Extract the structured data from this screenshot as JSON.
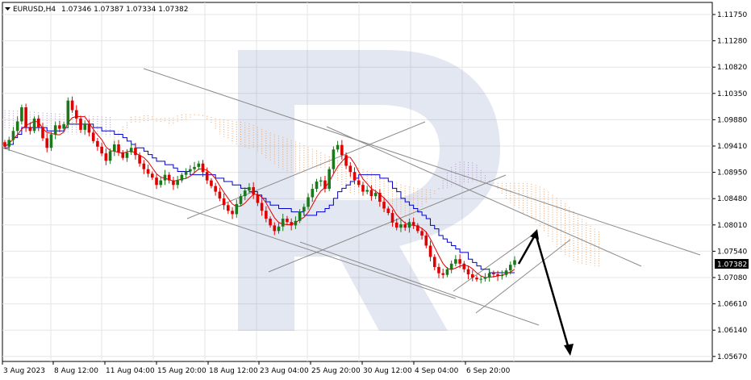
{
  "header": {
    "symbol": "EURUSD,H4",
    "ohlc": "1.07346 1.07387 1.07334 1.07382"
  },
  "colors": {
    "bull_candle": "#1a7a1a",
    "bear_candle": "#e00000",
    "kijun": "#0000cc",
    "tenkan": "#e00000",
    "cloud_bull": "#b090d0",
    "cloud_bear": "#f0a060",
    "trendline": "#888888",
    "arrow": "#000000",
    "grid": "#e6e6e6",
    "price_badge_bg": "#000000",
    "price_badge_fg": "#ffffff"
  },
  "chart_data": {
    "type": "candlestick",
    "y_ticks": [
      "1.11750",
      "1.11280",
      "1.10820",
      "1.10350",
      "1.09880",
      "1.09410",
      "1.08950",
      "1.08480",
      "1.08010",
      "1.07540",
      "1.07080",
      "1.06610",
      "1.06140",
      "1.05670"
    ],
    "x_ticks": [
      "3 Aug 2023",
      "8 Aug 12:00",
      "11 Aug 04:00",
      "15 Aug 20:00",
      "18 Aug 12:00",
      "23 Aug 04:00",
      "25 Aug 20:00",
      "30 Aug 12:00",
      "4 Sep 04:00",
      "6 Sep 20:00"
    ],
    "current_price": "1.07382",
    "ylim": [
      1.056,
      1.119
    ],
    "closes": [
      1.094,
      1.0952,
      1.0968,
      1.0985,
      1.101,
      1.0975,
      1.0968,
      1.099,
      1.0975,
      1.0955,
      1.0938,
      1.0962,
      1.0978,
      1.0972,
      1.098,
      1.1022,
      1.1005,
      1.099,
      1.097,
      1.098,
      1.0965,
      1.095,
      1.094,
      1.0928,
      1.0915,
      1.0932,
      1.0944,
      1.093,
      1.092,
      1.093,
      1.0938,
      1.0925,
      1.091,
      1.09,
      1.0892,
      1.0885,
      1.0872,
      1.088,
      1.089,
      1.088,
      1.0872,
      1.088,
      1.089,
      1.0896,
      1.09,
      1.0904,
      1.091,
      1.0895,
      1.088,
      1.087,
      1.086,
      1.0848,
      1.0836,
      1.0826,
      1.082,
      1.0838,
      1.0852,
      1.0862,
      1.0868,
      1.0855,
      1.084,
      1.0826,
      1.0812,
      1.08,
      1.079,
      1.0798,
      1.0812,
      1.0806,
      1.08,
      1.0808,
      1.0825,
      1.0833,
      1.085,
      1.0865,
      1.0878,
      1.088,
      1.0865,
      1.09,
      1.0935,
      1.0943,
      1.0925,
      1.0906,
      1.0895,
      1.088,
      1.0872,
      1.086,
      1.0863,
      1.0852,
      1.0858,
      1.0842,
      1.083,
      1.0822,
      1.0805,
      1.0796,
      1.0802,
      1.0796,
      1.0806,
      1.08,
      1.079,
      1.0782,
      1.0764,
      1.0744,
      1.0726,
      1.0715,
      1.0712,
      1.0722,
      1.0732,
      1.074,
      1.0732,
      1.0722,
      1.0713,
      1.0707,
      1.0704,
      1.0705,
      1.0708,
      1.0715,
      1.0713,
      1.071,
      1.0712,
      1.072,
      1.073,
      1.0738
    ],
    "projection": {
      "from": [
        1.07382,
        "now"
      ],
      "peak": 1.08,
      "target": 1.0567
    }
  }
}
